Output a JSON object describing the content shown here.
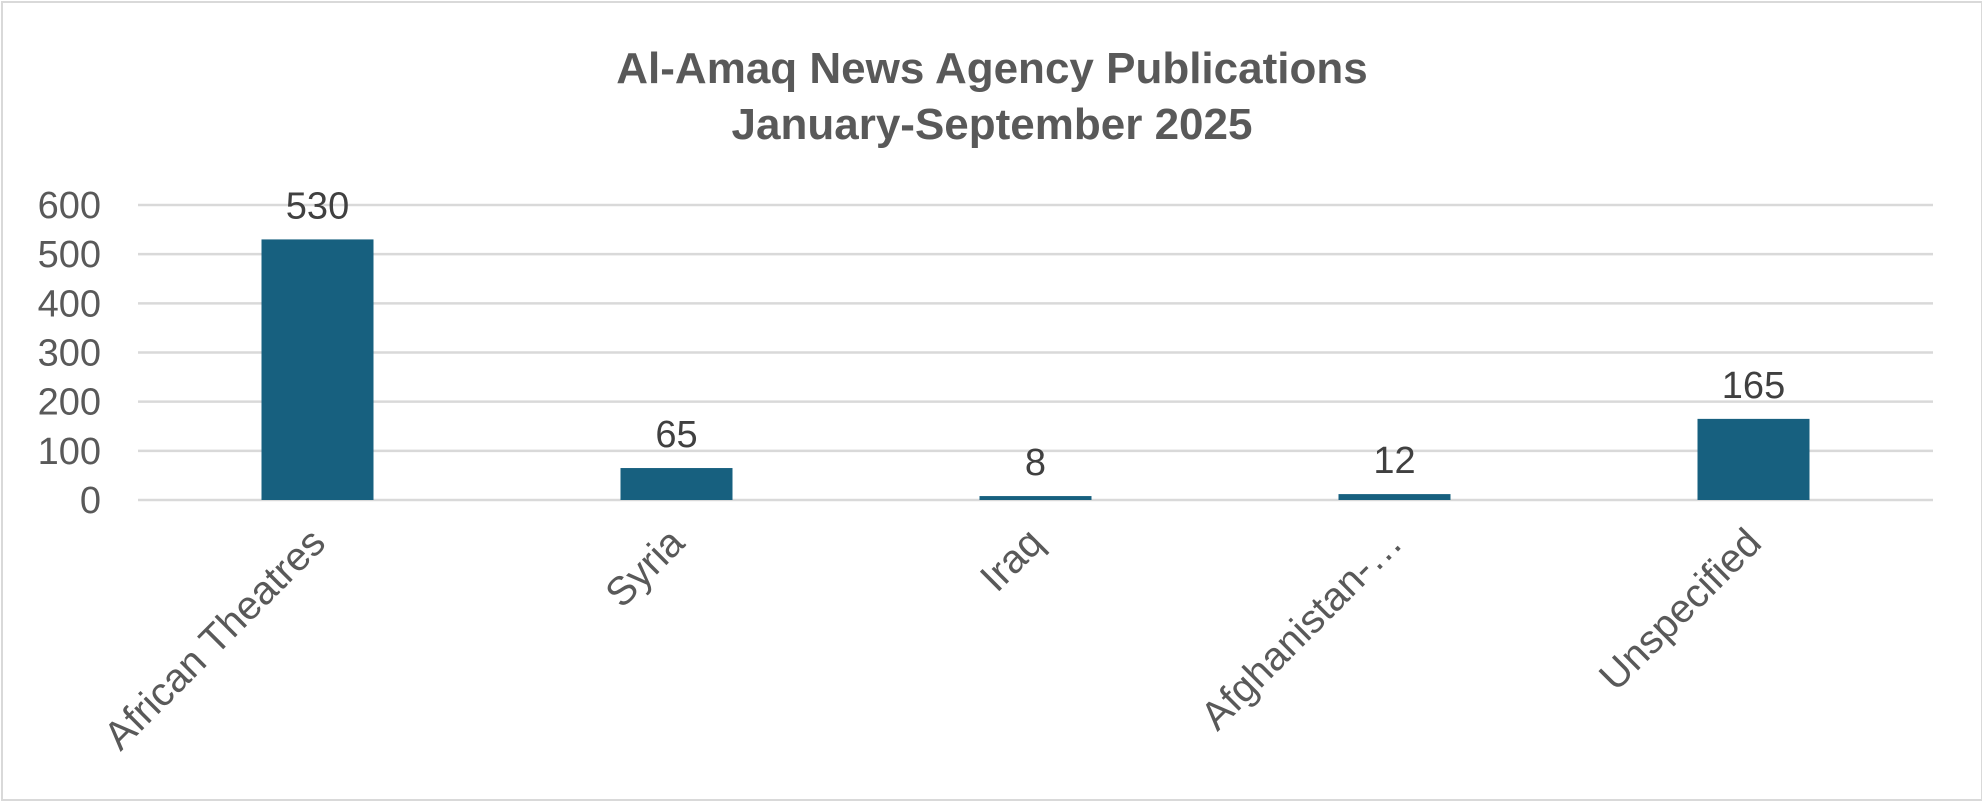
{
  "chart_data": {
    "type": "bar",
    "title": [
      "Al-Amaq News Agency Publications",
      "January-September 2025"
    ],
    "categories": [
      "African Theatres",
      "Syria",
      "Iraq",
      "Afghanistan-…",
      "Unspecified"
    ],
    "values": [
      530,
      65,
      8,
      12,
      165
    ],
    "data_labels": [
      "530",
      "65",
      "8",
      "12",
      "165"
    ],
    "yticks": [
      0,
      100,
      200,
      300,
      400,
      500,
      600
    ],
    "ylim": [
      0,
      600
    ],
    "grid": true,
    "legend": "none",
    "bar_color": "#17607f",
    "grid_color": "#d9d9d9",
    "text_color": "#595959"
  }
}
